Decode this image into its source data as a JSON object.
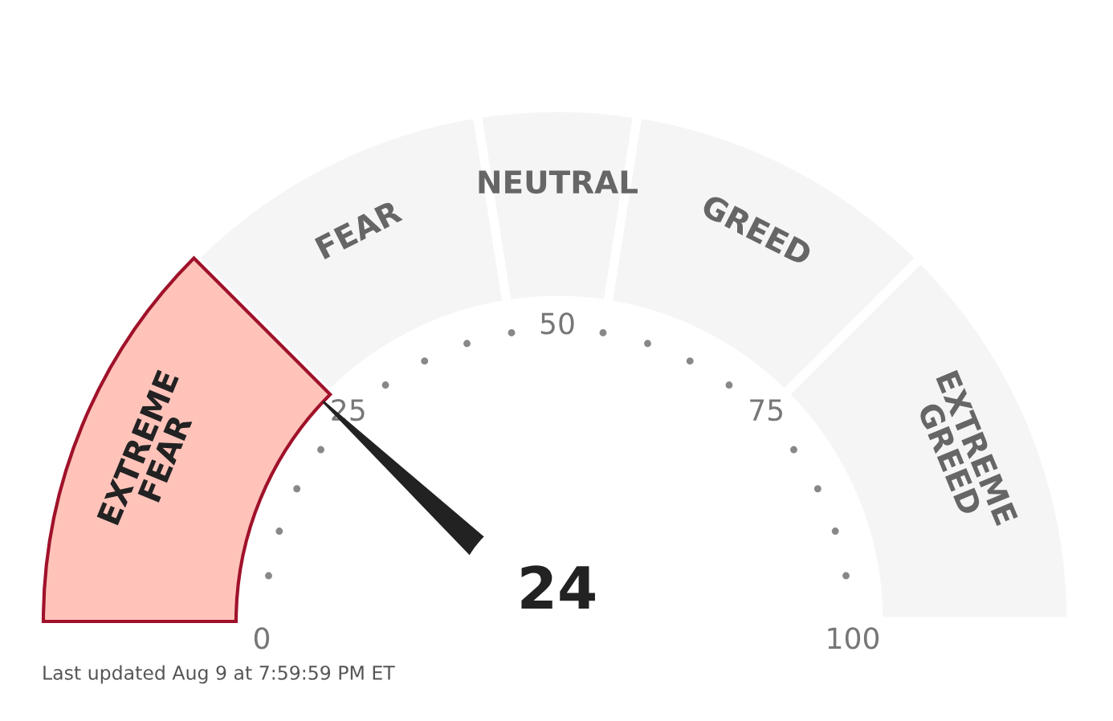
{
  "chart_data": {
    "type": "donut",
    "categories": [
      "EXTREME\nGREED",
      "GREED",
      "NEUTRAL",
      "FEAR",
      "EXTREME\nFEAR"
    ],
    "values": [
      25,
      20,
      10,
      20,
      25
    ],
    "colors": [
      "#f5f5f5",
      "#f5f5f5",
      "#f5f5f5",
      "#f5f5f5",
      "#ffc3ba"
    ],
    "needle": "EXTREME\nFEAR",
    "annotations": [
      "0",
      "25",
      "50",
      "75",
      "100",
      "24",
      "Last updated Aug 9 at 7:59:59 PM ET"
    ]
  }
}
